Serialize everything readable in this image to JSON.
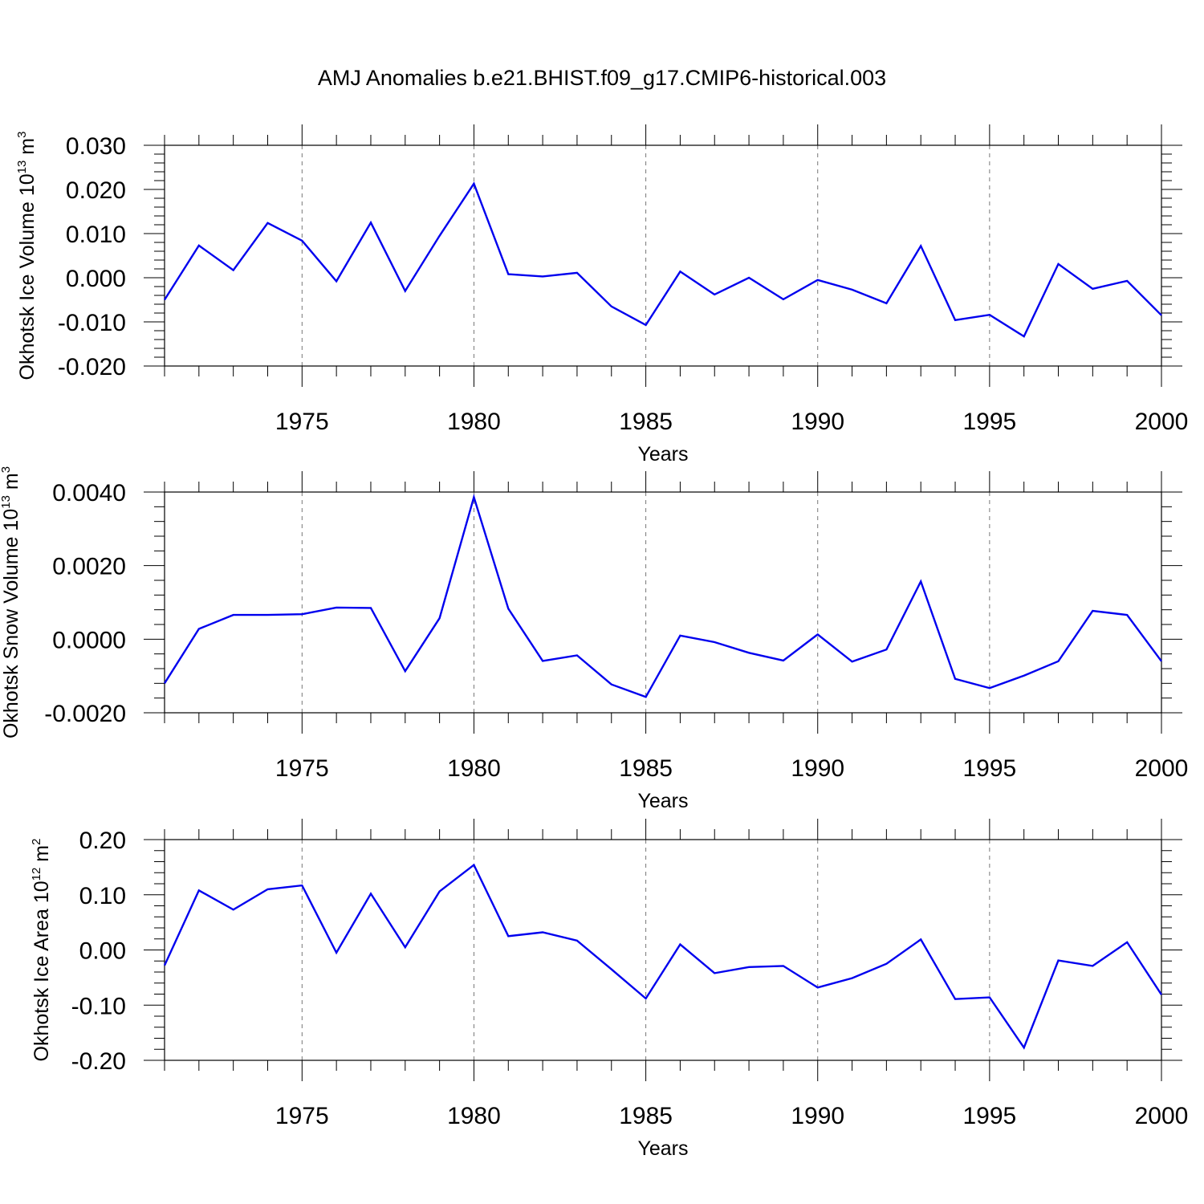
{
  "figure": {
    "title": "AMJ Anomalies b.e21.BHIST.f09_g17.CMIP6-historical.003"
  },
  "colors": {
    "series": "#0000ee",
    "axis": "#000000",
    "grid": "#777777"
  },
  "chart_data": [
    {
      "type": "line",
      "title": "",
      "xlabel": "Years",
      "ylabel": {
        "text": "Okhotsk Ice Volume 10",
        "exponent": "13",
        "unit": " m",
        "unit_exponent": "3"
      },
      "xlim": [
        1971,
        2000
      ],
      "ylim": [
        -0.02,
        0.03
      ],
      "x_ticks": [
        1975,
        1980,
        1985,
        1990,
        1995,
        2000
      ],
      "x_tick_labels": [
        "1975",
        "1980",
        "1985",
        "1990",
        "1995",
        "2000"
      ],
      "y_ticks": [
        -0.02,
        -0.01,
        0.0,
        0.01,
        0.02,
        0.03
      ],
      "y_tick_labels": [
        "-0.020",
        "-0.010",
        "0.000",
        "0.010",
        "0.020",
        "0.030"
      ],
      "grid": "vertical dashed at major x ticks",
      "series": [
        {
          "x": [
            1971,
            1972,
            1973,
            1974,
            1975,
            1976,
            1977,
            1978,
            1979,
            1980,
            1981,
            1982,
            1983,
            1984,
            1985,
            1986,
            1987,
            1988,
            1989,
            1990,
            1991,
            1992,
            1993,
            1994,
            1995,
            1996,
            1997,
            1998,
            1999,
            2000
          ],
          "values": [
            -0.005,
            0.0073,
            0.0017,
            0.0124,
            0.0084,
            -0.0008,
            0.0125,
            -0.003,
            0.0095,
            0.0213,
            0.0008,
            0.0003,
            0.0011,
            -0.0065,
            -0.0107,
            0.0014,
            -0.0038,
            0.0,
            -0.0049,
            -0.0005,
            -0.0027,
            -0.0058,
            0.0072,
            -0.0096,
            -0.0084,
            -0.0133,
            0.0031,
            -0.0025,
            -0.0007,
            -0.0085
          ]
        }
      ]
    },
    {
      "type": "line",
      "title": "",
      "xlabel": "Years",
      "ylabel": {
        "text": "Okhotsk Snow Volume 10",
        "exponent": "13",
        "unit": " m",
        "unit_exponent": "3"
      },
      "xlim": [
        1971,
        2000
      ],
      "ylim": [
        -0.002,
        0.004
      ],
      "x_ticks": [
        1975,
        1980,
        1985,
        1990,
        1995,
        2000
      ],
      "x_tick_labels": [
        "1975",
        "1980",
        "1985",
        "1990",
        "1995",
        "2000"
      ],
      "y_ticks": [
        -0.002,
        0.0,
        0.002,
        0.004
      ],
      "y_tick_labels": [
        "-0.0020",
        "0.0000",
        "0.0020",
        "0.0040"
      ],
      "grid": "vertical dashed at major x ticks",
      "series": [
        {
          "x": [
            1971,
            1972,
            1973,
            1974,
            1975,
            1976,
            1977,
            1978,
            1979,
            1980,
            1981,
            1982,
            1983,
            1984,
            1985,
            1986,
            1987,
            1988,
            1989,
            1990,
            1991,
            1992,
            1993,
            1994,
            1995,
            1996,
            1997,
            1998,
            1999,
            2000
          ],
          "values": [
            -0.0012,
            0.00028,
            0.00066,
            0.00066,
            0.00068,
            0.00086,
            0.00085,
            -0.00087,
            0.00057,
            0.00386,
            0.00083,
            -0.00059,
            -0.00044,
            -0.00123,
            -0.00157,
            0.0001,
            -8e-05,
            -0.00037,
            -0.00058,
            0.00013,
            -0.00061,
            -0.00028,
            0.00157,
            -0.00108,
            -0.00133,
            -0.00099,
            -0.0006,
            0.00077,
            0.00066,
            -0.0006
          ]
        }
      ]
    },
    {
      "type": "line",
      "title": "",
      "xlabel": "Years",
      "ylabel": {
        "text": "Okhotsk Ice Area 10",
        "exponent": "12",
        "unit": " m",
        "unit_exponent": "2"
      },
      "xlim": [
        1971,
        2000
      ],
      "ylim": [
        -0.2,
        0.2
      ],
      "x_ticks": [
        1975,
        1980,
        1985,
        1990,
        1995,
        2000
      ],
      "x_tick_labels": [
        "1975",
        "1980",
        "1985",
        "1990",
        "1995",
        "2000"
      ],
      "y_ticks": [
        -0.2,
        -0.1,
        0.0,
        0.1,
        0.2
      ],
      "y_tick_labels": [
        "-0.20",
        "-0.10",
        "0.00",
        "0.10",
        "0.20"
      ],
      "grid": "vertical dashed at major x ticks",
      "series": [
        {
          "x": [
            1971,
            1972,
            1973,
            1974,
            1975,
            1976,
            1977,
            1978,
            1979,
            1980,
            1981,
            1982,
            1983,
            1984,
            1985,
            1986,
            1987,
            1988,
            1989,
            1990,
            1991,
            1992,
            1993,
            1994,
            1995,
            1996,
            1997,
            1998,
            1999,
            2000
          ],
          "values": [
            -0.028,
            0.108,
            0.073,
            0.11,
            0.117,
            -0.005,
            0.102,
            0.005,
            0.106,
            0.154,
            0.025,
            0.032,
            0.017,
            -0.035,
            -0.088,
            0.01,
            -0.042,
            -0.031,
            -0.029,
            -0.068,
            -0.051,
            -0.025,
            0.019,
            -0.089,
            -0.086,
            -0.177,
            -0.019,
            -0.029,
            0.014,
            -0.081
          ]
        }
      ]
    }
  ]
}
